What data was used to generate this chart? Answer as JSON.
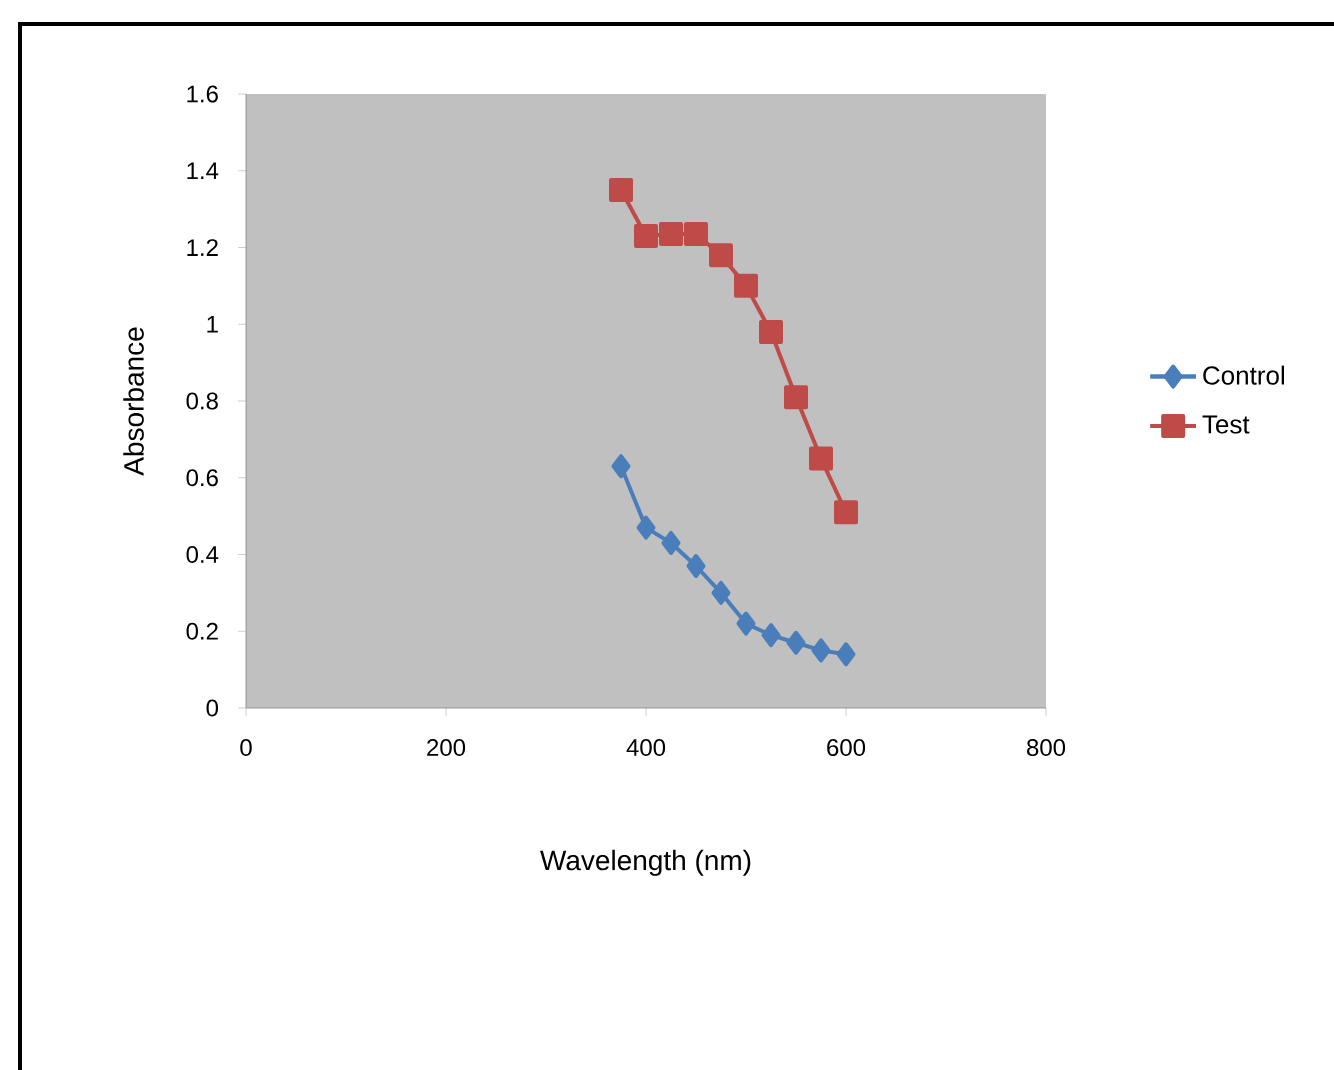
{
  "chart_data": {
    "type": "line",
    "xlabel": "Wavelength (nm)",
    "ylabel": "Absorbance",
    "x": [
      375,
      400,
      425,
      450,
      475,
      500,
      525,
      550,
      575,
      600
    ],
    "series": [
      {
        "name": "Control",
        "color": "#4a7ebb",
        "marker": "diamond",
        "values": [
          0.63,
          0.47,
          0.43,
          0.37,
          0.3,
          0.22,
          0.19,
          0.17,
          0.15,
          0.14
        ]
      },
      {
        "name": "Test",
        "color": "#be4b48",
        "marker": "square",
        "values": [
          1.35,
          1.23,
          1.235,
          1.235,
          1.18,
          1.1,
          0.98,
          0.81,
          0.65,
          0.51
        ]
      }
    ],
    "xlim": [
      0,
      800
    ],
    "xticks": [
      0,
      200,
      400,
      600,
      800
    ],
    "ylim": [
      0,
      1.6
    ],
    "yticks": [
      0,
      0.2,
      0.4,
      0.6,
      0.8,
      1,
      1.2,
      1.4,
      1.6
    ],
    "grid": false,
    "legend": "right",
    "line_style": "solid"
  }
}
